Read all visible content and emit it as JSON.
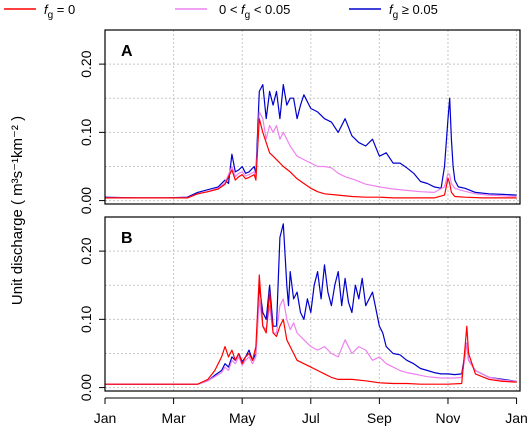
{
  "chart_data": {
    "type": "line",
    "ylabel": "Unit discharge ( m³s⁻¹km⁻² )",
    "xlabel": "",
    "x_ticks": [
      "Jan",
      "Mar",
      "May",
      "Jul",
      "Sep",
      "Nov",
      "Jan"
    ],
    "y_ticks": [
      "0.00",
      "0.10",
      "0.20"
    ],
    "y_tick_values": [
      0.0,
      0.1,
      0.2
    ],
    "ylim": [
      -0.005,
      0.25
    ],
    "xlim": [
      0,
      12.1
    ],
    "grid": true,
    "legend_position": "top",
    "series_meta": [
      {
        "key": "fg0",
        "name": "f_g = 0",
        "name_parts": [
          "f",
          "g",
          " = 0"
        ],
        "color": "#ff0000"
      },
      {
        "key": "fgmid",
        "name": "0 < f_g < 0.05",
        "name_parts": [
          "0 < f",
          "g",
          " < 0.05"
        ],
        "color": "#ee82ee"
      },
      {
        "key": "fghigh",
        "name": "f_g ≥ 0.05",
        "name_parts": [
          "f",
          "g",
          " ≥ 0.05"
        ],
        "color": "#0000cd"
      }
    ],
    "panels": [
      {
        "label": "A",
        "series": [
          {
            "key": "fghigh",
            "x": [
              0.0,
              1.0,
              1.8,
              2.4,
              2.7,
              3.0,
              3.3,
              3.5,
              3.6,
              3.7,
              3.8,
              3.9,
              4.0,
              4.1,
              4.2,
              4.35,
              4.4,
              4.5,
              4.6,
              4.7,
              4.8,
              4.9,
              5.0,
              5.1,
              5.2,
              5.3,
              5.4,
              5.5,
              5.6,
              5.7,
              5.8,
              6.0,
              6.2,
              6.4,
              6.6,
              6.8,
              7.0,
              7.2,
              7.4,
              7.6,
              7.8,
              8.0,
              8.2,
              8.4,
              8.6,
              8.8,
              9.0,
              9.2,
              9.4,
              9.6,
              9.8,
              9.9,
              10.0,
              10.05,
              10.1,
              10.15,
              10.2,
              10.25,
              10.3,
              10.5,
              10.8,
              11.2,
              11.6,
              12.0
            ],
            "y": [
              0.005,
              0.004,
              0.004,
              0.005,
              0.012,
              0.016,
              0.02,
              0.03,
              0.025,
              0.068,
              0.042,
              0.045,
              0.05,
              0.04,
              0.042,
              0.05,
              0.04,
              0.16,
              0.17,
              0.12,
              0.16,
              0.14,
              0.16,
              0.12,
              0.17,
              0.14,
              0.15,
              0.15,
              0.12,
              0.14,
              0.155,
              0.135,
              0.13,
              0.12,
              0.115,
              0.1,
              0.12,
              0.095,
              0.085,
              0.08,
              0.09,
              0.065,
              0.07,
              0.055,
              0.055,
              0.048,
              0.04,
              0.028,
              0.025,
              0.02,
              0.018,
              0.05,
              0.12,
              0.15,
              0.09,
              0.05,
              0.03,
              0.025,
              0.02,
              0.018,
              0.012,
              0.01,
              0.009,
              0.008
            ]
          },
          {
            "key": "fgmid",
            "x": [
              0.0,
              1.0,
              1.8,
              2.4,
              2.7,
              3.0,
              3.3,
              3.5,
              3.7,
              3.8,
              3.9,
              4.0,
              4.1,
              4.2,
              4.35,
              4.4,
              4.5,
              4.6,
              4.7,
              4.8,
              4.9,
              5.0,
              5.1,
              5.2,
              5.4,
              5.6,
              5.8,
              6.0,
              6.2,
              6.4,
              6.6,
              6.8,
              7.0,
              7.3,
              7.6,
              8.0,
              8.4,
              8.8,
              9.2,
              9.6,
              9.9,
              10.0,
              10.05,
              10.1,
              10.2,
              10.4,
              10.8,
              11.2,
              11.6,
              12.0
            ],
            "y": [
              0.004,
              0.004,
              0.004,
              0.004,
              0.01,
              0.013,
              0.018,
              0.026,
              0.05,
              0.035,
              0.04,
              0.042,
              0.036,
              0.038,
              0.042,
              0.035,
              0.13,
              0.12,
              0.09,
              0.11,
              0.1,
              0.11,
              0.09,
              0.1,
              0.08,
              0.065,
              0.06,
              0.055,
              0.05,
              0.05,
              0.048,
              0.04,
              0.035,
              0.03,
              0.024,
              0.02,
              0.017,
              0.015,
              0.013,
              0.012,
              0.02,
              0.04,
              0.038,
              0.025,
              0.018,
              0.015,
              0.01,
              0.008,
              0.007,
              0.006
            ]
          },
          {
            "key": "fg0",
            "x": [
              0.0,
              1.0,
              1.8,
              2.4,
              2.7,
              3.0,
              3.3,
              3.5,
              3.7,
              3.8,
              3.9,
              4.0,
              4.1,
              4.2,
              4.35,
              4.4,
              4.5,
              4.6,
              4.7,
              4.8,
              4.9,
              5.0,
              5.2,
              5.4,
              5.6,
              5.8,
              6.0,
              6.2,
              6.4,
              6.8,
              7.2,
              7.6,
              8.0,
              8.4,
              8.8,
              9.2,
              9.6,
              9.9,
              10.0,
              10.05,
              10.1,
              10.2,
              10.5,
              11.0,
              11.5,
              12.0
            ],
            "y": [
              0.004,
              0.004,
              0.004,
              0.004,
              0.01,
              0.013,
              0.017,
              0.024,
              0.045,
              0.03,
              0.035,
              0.038,
              0.032,
              0.034,
              0.038,
              0.03,
              0.12,
              0.1,
              0.085,
              0.07,
              0.065,
              0.06,
              0.05,
              0.042,
              0.032,
              0.025,
              0.018,
              0.013,
              0.01,
              0.008,
              0.006,
              0.005,
              0.005,
              0.004,
              0.004,
              0.004,
              0.004,
              0.008,
              0.033,
              0.025,
              0.012,
              0.006,
              0.005,
              0.004,
              0.004,
              0.004
            ]
          }
        ]
      },
      {
        "label": "B",
        "series": [
          {
            "key": "fghigh",
            "x": [
              0.0,
              1.0,
              2.0,
              2.7,
              3.0,
              3.2,
              3.4,
              3.5,
              3.6,
              3.7,
              3.8,
              3.9,
              4.0,
              4.1,
              4.2,
              4.3,
              4.4,
              4.5,
              4.6,
              4.7,
              4.8,
              4.9,
              5.0,
              5.1,
              5.2,
              5.3,
              5.35,
              5.4,
              5.5,
              5.6,
              5.7,
              5.8,
              5.9,
              6.0,
              6.1,
              6.2,
              6.3,
              6.4,
              6.5,
              6.6,
              6.7,
              6.8,
              6.9,
              7.0,
              7.1,
              7.2,
              7.3,
              7.4,
              7.5,
              7.6,
              7.8,
              8.0,
              8.1,
              8.2,
              8.4,
              8.6,
              8.8,
              9.0,
              9.2,
              9.4,
              9.6,
              9.8,
              10.0,
              10.2,
              10.4,
              10.5,
              10.55,
              10.6,
              10.8,
              11.2,
              11.6,
              12.0
            ],
            "y": [
              0.005,
              0.005,
              0.005,
              0.005,
              0.01,
              0.018,
              0.025,
              0.035,
              0.03,
              0.045,
              0.04,
              0.05,
              0.038,
              0.045,
              0.055,
              0.04,
              0.05,
              0.15,
              0.11,
              0.1,
              0.15,
              0.09,
              0.09,
              0.22,
              0.24,
              0.15,
              0.12,
              0.17,
              0.13,
              0.14,
              0.11,
              0.1,
              0.13,
              0.11,
              0.15,
              0.17,
              0.13,
              0.18,
              0.14,
              0.12,
              0.15,
              0.17,
              0.12,
              0.16,
              0.125,
              0.11,
              0.15,
              0.13,
              0.16,
              0.12,
              0.14,
              0.09,
              0.08,
              0.06,
              0.05,
              0.048,
              0.04,
              0.035,
              0.028,
              0.025,
              0.022,
              0.02,
              0.02,
              0.019,
              0.02,
              0.05,
              0.065,
              0.04,
              0.025,
              0.015,
              0.012,
              0.009
            ]
          },
          {
            "key": "fgmid",
            "x": [
              0.0,
              1.0,
              2.0,
              2.7,
              3.0,
              3.2,
              3.4,
              3.5,
              3.6,
              3.7,
              3.8,
              3.9,
              4.0,
              4.1,
              4.2,
              4.3,
              4.4,
              4.5,
              4.6,
              4.7,
              4.8,
              4.9,
              5.0,
              5.1,
              5.2,
              5.3,
              5.4,
              5.5,
              5.6,
              5.8,
              6.0,
              6.2,
              6.4,
              6.6,
              6.8,
              7.0,
              7.2,
              7.4,
              7.6,
              7.8,
              8.0,
              8.2,
              8.4,
              8.6,
              8.8,
              9.0,
              9.2,
              9.4,
              9.6,
              9.8,
              10.0,
              10.2,
              10.4,
              10.5,
              10.55,
              10.6,
              10.8,
              11.2,
              11.6,
              12.0
            ],
            "y": [
              0.005,
              0.005,
              0.005,
              0.005,
              0.01,
              0.016,
              0.022,
              0.03,
              0.025,
              0.04,
              0.035,
              0.045,
              0.033,
              0.04,
              0.045,
              0.035,
              0.045,
              0.13,
              0.09,
              0.085,
              0.12,
              0.08,
              0.08,
              0.12,
              0.13,
              0.1,
              0.085,
              0.095,
              0.08,
              0.07,
              0.06,
              0.055,
              0.06,
              0.05,
              0.045,
              0.07,
              0.05,
              0.06,
              0.055,
              0.04,
              0.045,
              0.035,
              0.03,
              0.025,
              0.022,
              0.02,
              0.018,
              0.016,
              0.015,
              0.014,
              0.014,
              0.014,
              0.015,
              0.045,
              0.065,
              0.04,
              0.025,
              0.015,
              0.011,
              0.009
            ]
          },
          {
            "key": "fg0",
            "x": [
              0.0,
              1.0,
              2.0,
              2.7,
              3.0,
              3.2,
              3.3,
              3.4,
              3.5,
              3.6,
              3.7,
              3.8,
              3.9,
              4.0,
              4.1,
              4.2,
              4.3,
              4.4,
              4.5,
              4.6,
              4.7,
              4.8,
              4.9,
              5.0,
              5.1,
              5.2,
              5.3,
              5.4,
              5.5,
              5.6,
              5.8,
              6.0,
              6.2,
              6.4,
              6.6,
              6.8,
              7.0,
              7.2,
              7.6,
              8.0,
              8.4,
              8.8,
              9.2,
              9.6,
              10.0,
              10.4,
              10.5,
              10.55,
              10.6,
              10.8,
              11.2,
              11.6,
              12.0
            ],
            "y": [
              0.005,
              0.005,
              0.005,
              0.005,
              0.012,
              0.025,
              0.035,
              0.045,
              0.06,
              0.045,
              0.055,
              0.04,
              0.05,
              0.035,
              0.045,
              0.05,
              0.04,
              0.06,
              0.165,
              0.09,
              0.08,
              0.14,
              0.08,
              0.075,
              0.09,
              0.1,
              0.07,
              0.06,
              0.05,
              0.04,
              0.035,
              0.03,
              0.025,
              0.02,
              0.015,
              0.012,
              0.012,
              0.012,
              0.01,
              0.007,
              0.006,
              0.006,
              0.005,
              0.005,
              0.005,
              0.006,
              0.06,
              0.09,
              0.05,
              0.02,
              0.012,
              0.009,
              0.008
            ]
          }
        ]
      }
    ]
  }
}
